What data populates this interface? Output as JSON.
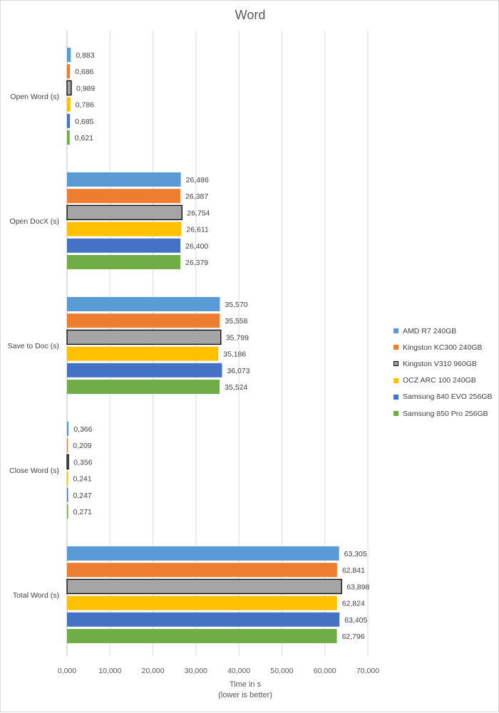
{
  "chart_data": {
    "type": "bar",
    "orientation": "horizontal",
    "title": "Word",
    "xlabel": [
      "Time in s",
      "(lower is better)"
    ],
    "ylabel": "",
    "xlim": [
      0,
      70000
    ],
    "xticks": [
      0,
      10000,
      20000,
      30000,
      40000,
      50000,
      60000,
      70000
    ],
    "xtick_labels": [
      "0,000",
      "10,000",
      "20,000",
      "30,000",
      "40,000",
      "50,000",
      "60,000",
      "70,000"
    ],
    "grid": "vertical",
    "legend_position": "right",
    "categories": [
      "Open Word (s)",
      "Open DocX (s)",
      "Save to Doc (s)",
      "Close Word (s)",
      "Total Word (s)"
    ],
    "series": [
      {
        "name": "AMD R7 240GB",
        "color": "#5B9BD5",
        "values": [
          883,
          26486,
          35570,
          366,
          63305
        ],
        "labels": [
          "0,883",
          "26,486",
          "35,570",
          "0,366",
          "63,305"
        ]
      },
      {
        "name": "Kingston KC300 240GB",
        "color": "#ED7D31",
        "values": [
          686,
          26387,
          35558,
          209,
          62841
        ],
        "labels": [
          "0,686",
          "26,387",
          "35,558",
          "0,209",
          "62,841"
        ]
      },
      {
        "name": "Kingston V310 960GB",
        "color": "#A5A5A5",
        "outline": "#000000",
        "values": [
          989,
          26754,
          35799,
          356,
          63898
        ],
        "labels": [
          "0,989",
          "26,754",
          "35,799",
          "0,356",
          "63,898"
        ]
      },
      {
        "name": "OCZ ARC 100 240GB",
        "color": "#FFC000",
        "values": [
          786,
          26611,
          35186,
          241,
          62824
        ],
        "labels": [
          "0,786",
          "26,611",
          "35,186",
          "0,241",
          "62,824"
        ]
      },
      {
        "name": "Samsung 840 EVO 256GB",
        "color": "#4472C4",
        "values": [
          685,
          26400,
          36073,
          247,
          63405
        ],
        "labels": [
          "0,685",
          "26,400",
          "36,073",
          "0,247",
          "63,405"
        ]
      },
      {
        "name": "Samsung 850 Pro 256GB",
        "color": "#70AD47",
        "values": [
          621,
          26379,
          35524,
          271,
          62796
        ],
        "labels": [
          "0,621",
          "26,379",
          "35,524",
          "0,271",
          "62,796"
        ]
      }
    ]
  }
}
